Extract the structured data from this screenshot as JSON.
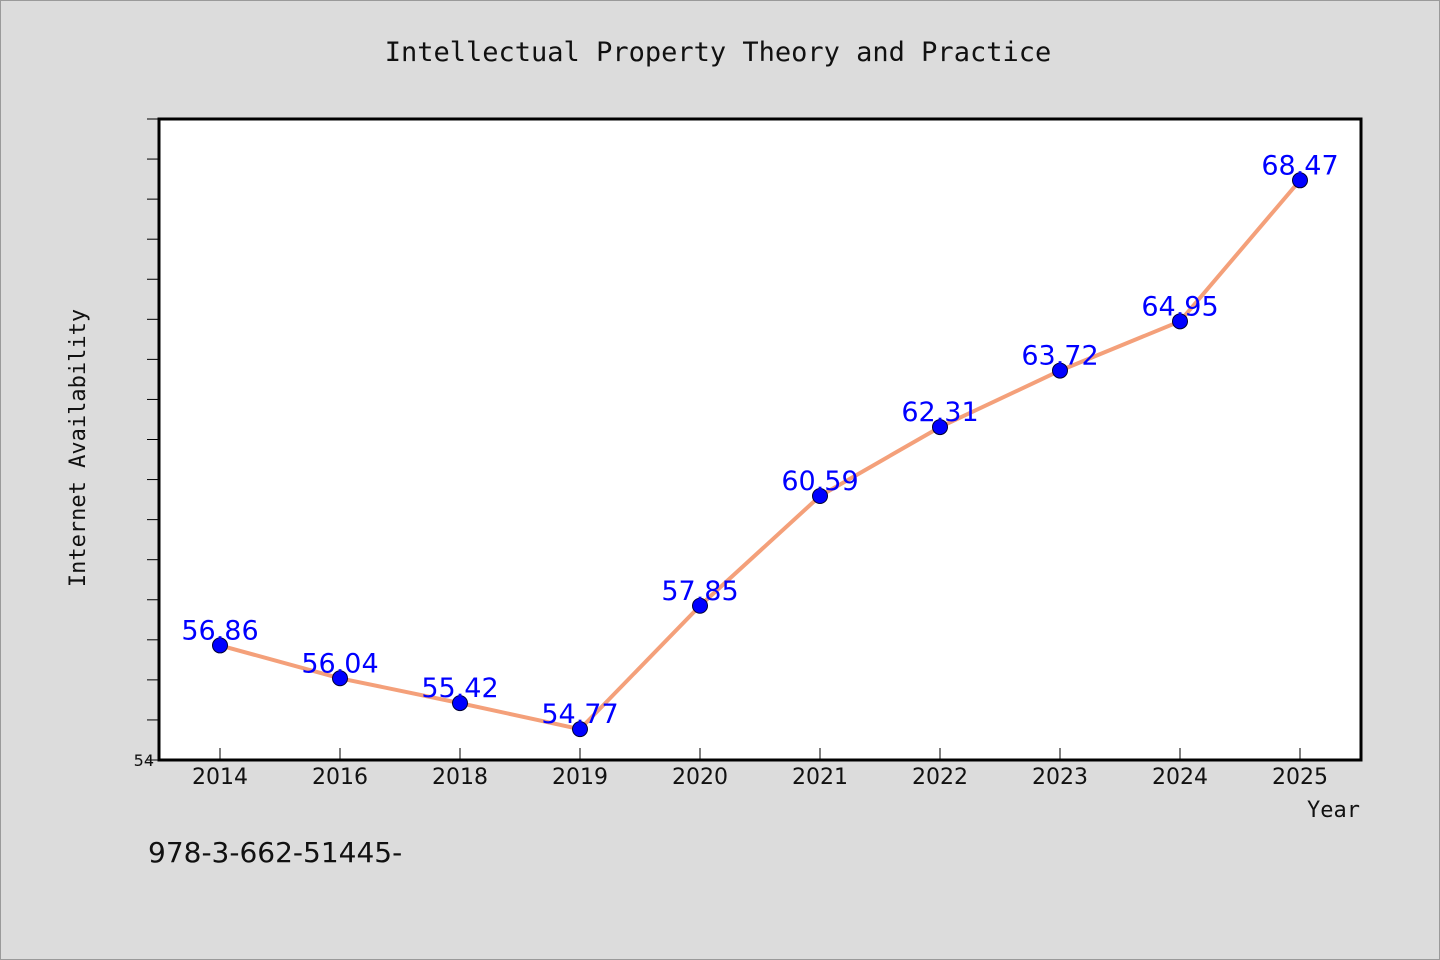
{
  "chart_data": {
    "type": "line",
    "title": "Intellectual Property Theory and Practice",
    "xlabel": "Year",
    "ylabel": "Internet Availability",
    "categories": [
      "2014",
      "2016",
      "2018",
      "2019",
      "2020",
      "2021",
      "2022",
      "2023",
      "2024",
      "2025"
    ],
    "series": [
      {
        "values": [
          56.86,
          56.04,
          55.42,
          54.77,
          57.85,
          60.59,
          62.31,
          63.72,
          64.95,
          68.47
        ],
        "line_color": "#f4a07a",
        "marker_color": "#0000ff"
      }
    ],
    "data_labels": [
      "56.86",
      "56.04",
      "55.42",
      "54.77",
      "57.85",
      "60.59",
      "62.31",
      "63.72",
      "64.95",
      "68.47"
    ],
    "ylim": [
      54,
      70
    ],
    "y_tick_labels": [
      "54"
    ],
    "grid": false,
    "plot_background": "#ffffff",
    "page_background": "#dcdcdc"
  },
  "footer": {
    "text": "978-3-662-51445-"
  }
}
